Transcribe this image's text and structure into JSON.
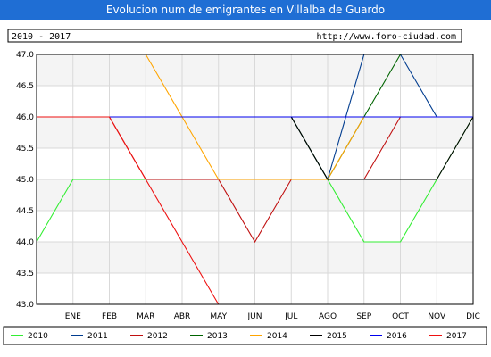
{
  "chart_data": {
    "type": "line",
    "title": "Evolucion num de emigrantes en Villalba de Guardo",
    "period_label": "2010 - 2017",
    "source_url": "http://www.foro-ciudad.com",
    "categories": [
      "",
      "ENE",
      "FEB",
      "MAR",
      "ABR",
      "MAY",
      "JUN",
      "JUL",
      "AGO",
      "SEP",
      "OCT",
      "NOV",
      "DIC"
    ],
    "ylim": [
      43.0,
      47.0
    ],
    "yticks": [
      "47.0",
      "46.5",
      "46.0",
      "45.5",
      "45.0",
      "44.5",
      "44.0",
      "43.5",
      "43.0"
    ],
    "grid": true,
    "legend_position": "bottom",
    "colors": {
      "title_bar": "#1f6ed4",
      "plot_bg": "#f4f4f4",
      "plot_band": "#ffffff",
      "grid": "#d9d9d9"
    },
    "series": [
      {
        "name": "2010",
        "color": "#33ee33",
        "values": [
          44,
          45,
          45,
          45,
          45,
          45,
          45,
          45,
          45,
          44,
          44,
          45,
          46
        ]
      },
      {
        "name": "2011",
        "color": "#003c8f",
        "values": [
          46,
          46,
          46,
          46,
          46,
          46,
          46,
          46,
          45,
          47,
          47,
          46,
          46
        ]
      },
      {
        "name": "2012",
        "color": "#c01010",
        "values": [
          46,
          46,
          46,
          45,
          45,
          45,
          44,
          45,
          45,
          45,
          46,
          null,
          null
        ]
      },
      {
        "name": "2013",
        "color": "#006400",
        "values": [
          46,
          46,
          46,
          46,
          46,
          46,
          46,
          46,
          45,
          46,
          47,
          47,
          47
        ]
      },
      {
        "name": "2014",
        "color": "#ffa500",
        "values": [
          47,
          47,
          47,
          47,
          46,
          45,
          45,
          45,
          45,
          46,
          46,
          46,
          46
        ]
      },
      {
        "name": "2015",
        "color": "#000000",
        "values": [
          46,
          46,
          46,
          46,
          46,
          46,
          46,
          46,
          45,
          45,
          45,
          45,
          46
        ]
      },
      {
        "name": "2016",
        "color": "#0000ee",
        "values": [
          46,
          46,
          46,
          46,
          46,
          46,
          46,
          46,
          46,
          46,
          46,
          46,
          46
        ]
      },
      {
        "name": "2017",
        "color": "#ee1111",
        "values": [
          46,
          46,
          46,
          45,
          44,
          43,
          null,
          null,
          null,
          null,
          null,
          null,
          null
        ]
      }
    ]
  }
}
